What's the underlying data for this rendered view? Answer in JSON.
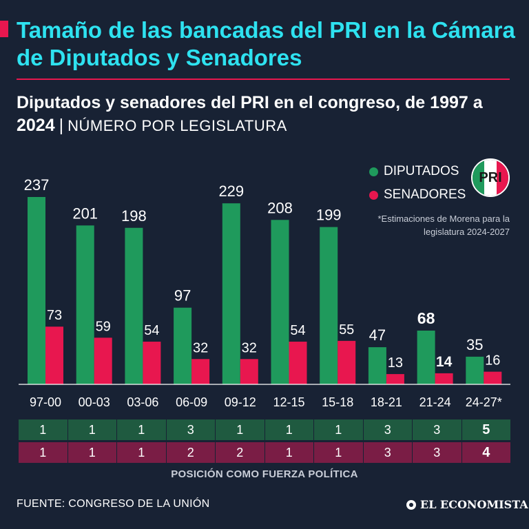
{
  "header": {
    "title": "Tamaño de las bancadas del PRI en la Cámara de Diputados y Senadores",
    "subtitle_bold": "Diputados y senadores del PRI en el congreso, de 1997 a 2024",
    "subtitle_sep": "|",
    "subtitle_unit": "NÚMERO POR LEGISLATURA"
  },
  "legend": {
    "diputados": "DIPUTADOS",
    "senadores": "SENADORES"
  },
  "logo": {
    "text": "PRI"
  },
  "note": "*Estimaciones de Morena para la legislatura 2024-2027",
  "colors": {
    "background": "#182234",
    "title": "#2ee2f0",
    "accent": "#e8174f",
    "diputados": "#1f9a5c",
    "senadores": "#e8174f",
    "pos_diputados_bg": "#1f5a40",
    "pos_senadores_bg": "#7a1d45"
  },
  "chart_data": {
    "type": "bar",
    "title": "Diputados y senadores del PRI en el congreso, de 1997 a 2024",
    "ylabel": "Número por legislatura",
    "ylim": [
      0,
      250
    ],
    "categories": [
      "97-00",
      "00-03",
      "03-06",
      "06-09",
      "09-12",
      "12-15",
      "15-18",
      "18-21",
      "21-24",
      "24-27*"
    ],
    "series": [
      {
        "name": "DIPUTADOS",
        "values": [
          237,
          201,
          198,
          97,
          229,
          208,
          199,
          47,
          68,
          35
        ]
      },
      {
        "name": "SENADORES",
        "values": [
          73,
          59,
          54,
          32,
          32,
          54,
          55,
          13,
          14,
          16
        ]
      }
    ],
    "highlight_index": 8,
    "legend_position": "top-right"
  },
  "positions": {
    "label": "POSICIÓN COMO FUERZA POLÍTICA",
    "diputados": [
      "1",
      "1",
      "1",
      "3",
      "1",
      "1",
      "1",
      "3",
      "3",
      "5"
    ],
    "senadores": [
      "1",
      "1",
      "1",
      "2",
      "2",
      "1",
      "1",
      "3",
      "3",
      "4"
    ]
  },
  "footer": {
    "source": "FUENTE: CONGRESO DE LA UNIÓN",
    "brand": "EL ECONOMISTA"
  }
}
